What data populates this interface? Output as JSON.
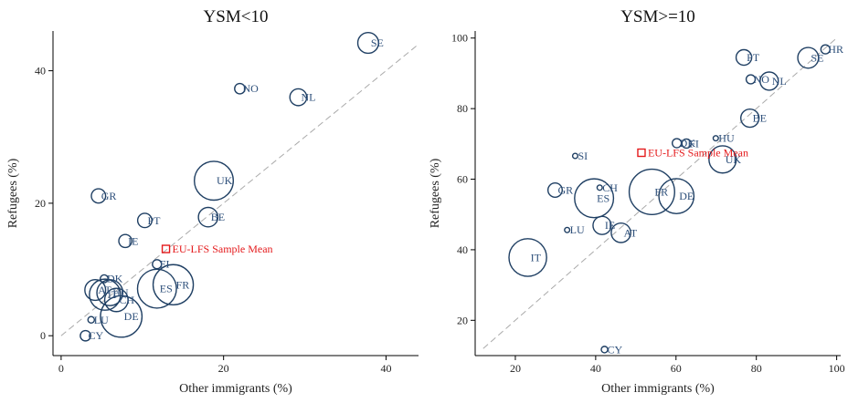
{
  "chart_data": [
    {
      "type": "scatter",
      "title": "YSM<10",
      "xlabel": "Other immigrants (%)",
      "ylabel": "Refugees (%)",
      "xlim": [
        -1,
        44
      ],
      "ylim": [
        -3,
        46
      ],
      "xticks": [
        0,
        20,
        40
      ],
      "yticks": [
        0,
        20,
        40
      ],
      "diagonal": [
        [
          0,
          0
        ],
        [
          44,
          44
        ]
      ],
      "colors": {
        "points": "#1f3f63",
        "labels": "#2d4f7a",
        "mean": "#e41a1c",
        "diagonal": "#aaaaaa"
      },
      "points": [
        {
          "label": "SE",
          "x": 37.8,
          "y": 44.2,
          "size": 1.6
        },
        {
          "label": "NO",
          "x": 22.0,
          "y": 37.3,
          "size": 0.8
        },
        {
          "label": "NL",
          "x": 29.2,
          "y": 36.0,
          "size": 1.3
        },
        {
          "label": "UK",
          "x": 18.8,
          "y": 23.4,
          "size": 3.0
        },
        {
          "label": "GR",
          "x": 4.6,
          "y": 21.1,
          "size": 1.1
        },
        {
          "label": "BE",
          "x": 18.1,
          "y": 17.9,
          "size": 1.5
        },
        {
          "label": "PT",
          "x": 10.3,
          "y": 17.4,
          "size": 1.1
        },
        {
          "label": "IE",
          "x": 7.9,
          "y": 14.3,
          "size": 1.0
        },
        {
          "label": "FI",
          "x": 11.8,
          "y": 10.8,
          "size": 0.7
        },
        {
          "label": "DK",
          "x": 5.3,
          "y": 8.6,
          "size": 0.6
        },
        {
          "label": "AT",
          "x": 4.2,
          "y": 6.9,
          "size": 1.6
        },
        {
          "label": "HU",
          "x": 6.0,
          "y": 6.5,
          "size": 2.0
        },
        {
          "label": "IT",
          "x": 5.4,
          "y": 6.2,
          "size": 2.4
        },
        {
          "label": "CH",
          "x": 6.8,
          "y": 5.4,
          "size": 1.8
        },
        {
          "label": "ES",
          "x": 11.8,
          "y": 7.1,
          "size": 3.0
        },
        {
          "label": "FR",
          "x": 13.8,
          "y": 7.7,
          "size": 3.1
        },
        {
          "label": "DE",
          "x": 7.4,
          "y": 2.9,
          "size": 3.2
        },
        {
          "label": "LU",
          "x": 3.7,
          "y": 2.4,
          "size": 0.5
        },
        {
          "label": "CY",
          "x": 3.0,
          "y": 0.0,
          "size": 0.8
        }
      ],
      "mean": {
        "label": "EU-LFS Sample Mean",
        "x": 12.9,
        "y": 13.1
      }
    },
    {
      "type": "scatter",
      "title": "YSM>=10",
      "xlabel": "Other immigrants (%)",
      "ylabel": "Refugees (%)",
      "xlim": [
        10,
        101
      ],
      "ylim": [
        10,
        102
      ],
      "xticks": [
        20,
        40,
        60,
        80,
        100
      ],
      "yticks": [
        20,
        40,
        60,
        80,
        100
      ],
      "diagonal": [
        [
          12,
          12
        ],
        [
          100,
          100
        ]
      ],
      "colors": {
        "points": "#1f3f63",
        "labels": "#2d4f7a",
        "mean": "#e41a1c",
        "diagonal": "#aaaaaa"
      },
      "points": [
        {
          "label": "HR",
          "x": 97.2,
          "y": 96.8,
          "size": 0.7
        },
        {
          "label": "SE",
          "x": 92.9,
          "y": 94.4,
          "size": 1.6
        },
        {
          "label": "PT",
          "x": 76.9,
          "y": 94.5,
          "size": 1.2
        },
        {
          "label": "NO",
          "x": 78.6,
          "y": 88.3,
          "size": 0.7
        },
        {
          "label": "NL",
          "x": 83.2,
          "y": 87.8,
          "size": 1.4
        },
        {
          "label": "BE",
          "x": 78.4,
          "y": 77.3,
          "size": 1.4
        },
        {
          "label": "HU",
          "x": 69.9,
          "y": 71.6,
          "size": 0.4
        },
        {
          "label": "DK",
          "x": 60.2,
          "y": 70.2,
          "size": 0.7
        },
        {
          "label": "FI",
          "x": 62.6,
          "y": 70.1,
          "size": 0.7
        },
        {
          "label": "UK",
          "x": 71.6,
          "y": 65.6,
          "size": 2.1
        },
        {
          "label": "SI",
          "x": 34.9,
          "y": 66.6,
          "size": 0.4
        },
        {
          "label": "GR",
          "x": 29.9,
          "y": 56.9,
          "size": 1.1
        },
        {
          "label": "CH",
          "x": 41.0,
          "y": 57.6,
          "size": 0.4
        },
        {
          "label": "ES",
          "x": 39.6,
          "y": 54.6,
          "size": 3.0
        },
        {
          "label": "FR",
          "x": 54.0,
          "y": 56.4,
          "size": 3.5
        },
        {
          "label": "DE",
          "x": 60.1,
          "y": 55.2,
          "size": 2.7
        },
        {
          "label": "IE",
          "x": 41.6,
          "y": 46.9,
          "size": 1.4
        },
        {
          "label": "AT",
          "x": 46.3,
          "y": 44.8,
          "size": 1.5
        },
        {
          "label": "LU",
          "x": 32.9,
          "y": 45.6,
          "size": 0.4
        },
        {
          "label": "IT",
          "x": 23.1,
          "y": 37.8,
          "size": 2.9
        },
        {
          "label": "CY",
          "x": 42.2,
          "y": 11.7,
          "size": 0.5
        }
      ],
      "mean": {
        "label": "EU-LFS Sample Mean",
        "x": 51.4,
        "y": 67.5
      }
    }
  ]
}
